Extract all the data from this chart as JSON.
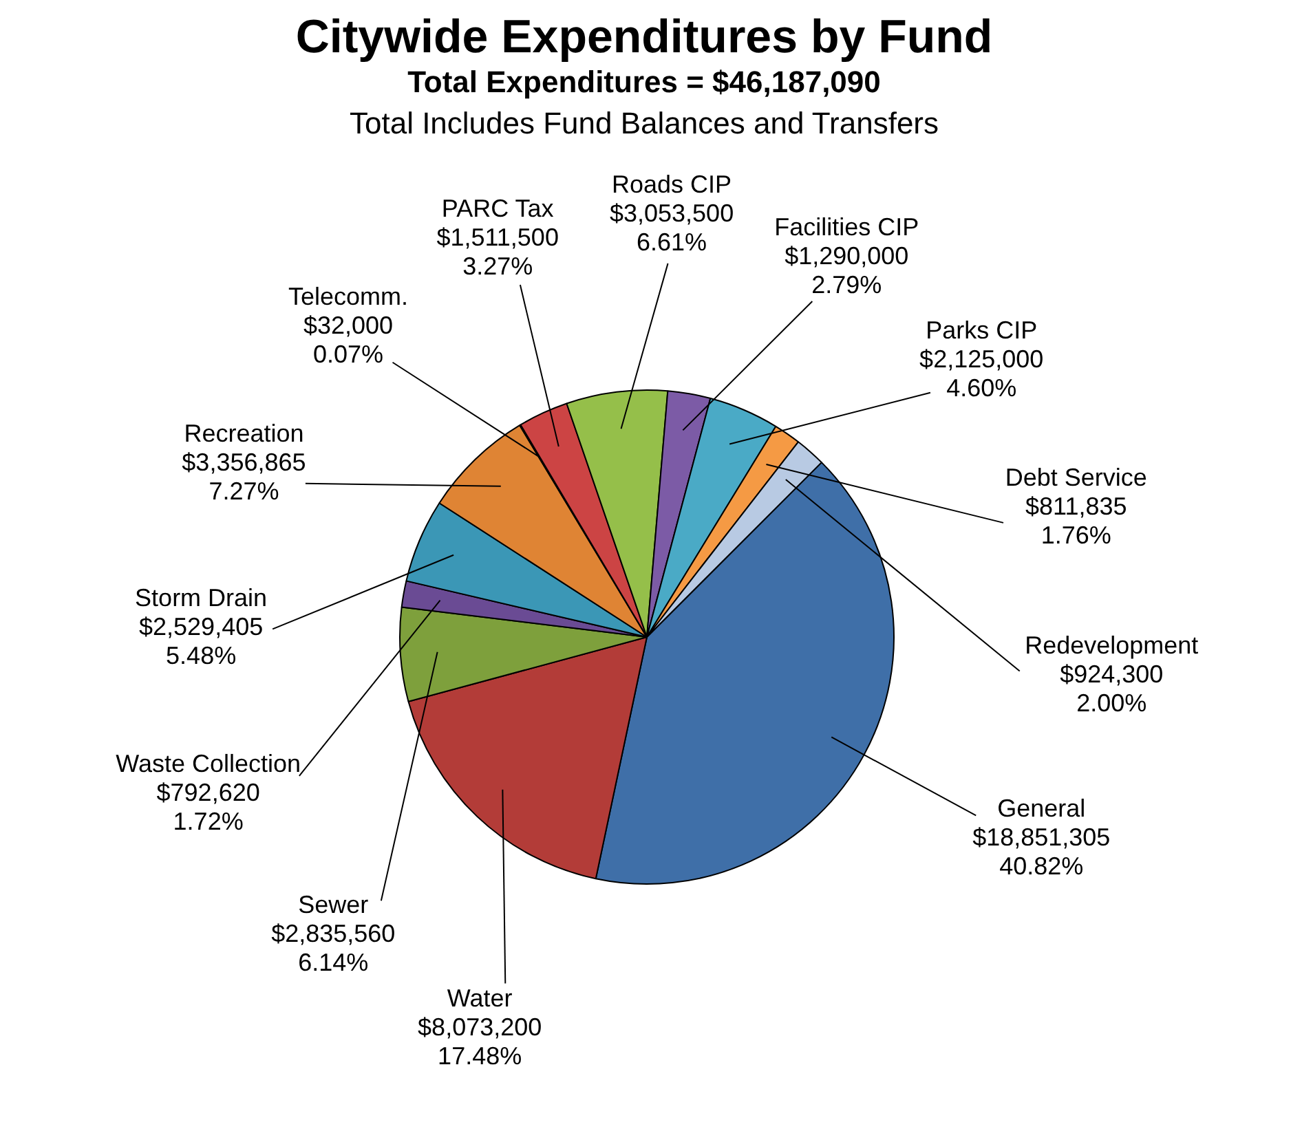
{
  "chart_data": {
    "type": "pie",
    "title": "Citywide Expenditures by Fund",
    "subtitle": "Total Expenditures = $46,187,090",
    "annotations": [
      "Total Includes Fund Balances and Transfers"
    ],
    "categories": [
      "General",
      "Water",
      "Sewer",
      "Waste Collection",
      "Storm Drain",
      "Recreation",
      "Telecomm.",
      "PARC Tax",
      "Roads CIP",
      "Facilities CIP",
      "Parks CIP",
      "Debt Service",
      "Redevelopment"
    ],
    "values": [
      18851305,
      8073200,
      2835560,
      792620,
      2529405,
      3356865,
      32000,
      1511500,
      3053500,
      1290000,
      2125000,
      811835,
      924300
    ],
    "value_labels": [
      "$18,851,305\n40.82%",
      "$8,073,200\n17.48%",
      "$2,835,560\n6.14%",
      "$792,620\n1.72%",
      "$2,529,405\n5.48%",
      "$3,356,865\n7.27%",
      "$32,000\n0.07%",
      "$1,511,500\n3.27%",
      "$3,053,500\n6.61%",
      "$1,290,000\n2.79%",
      "$2,125,000\n4.60%",
      "$811,835\n1.76%",
      "$924,300\n2.00%"
    ],
    "colors": [
      "#3f6fa8",
      "#b33c38",
      "#7ea03c",
      "#6a4b94",
      "#3b97b6",
      "#df8434",
      "#4a6fa5",
      "#cc4444",
      "#95bf4a",
      "#7c5ba6",
      "#4aaac6",
      "#f59a44",
      "#b8cae3"
    ],
    "legend": false
  }
}
